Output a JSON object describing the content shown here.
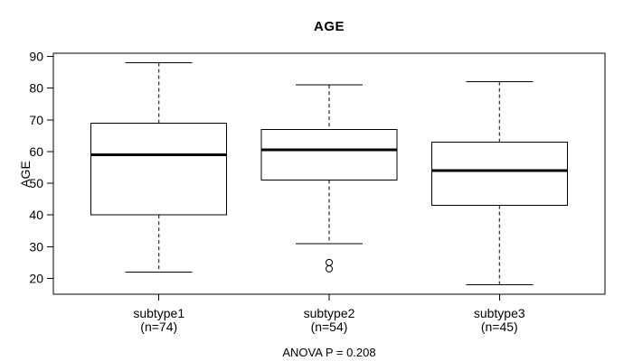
{
  "figure": {
    "background": "#ffffff",
    "foreground": "#000000"
  },
  "chart_data": {
    "type": "boxplot",
    "title": "AGE",
    "ylabel": "AGE",
    "xlabel": "",
    "annotation": "ANOVA P = 0.208",
    "ylim": [
      15,
      91
    ],
    "yticks": [
      20,
      30,
      40,
      50,
      60,
      70,
      80,
      90
    ],
    "grid": false,
    "legend": "none",
    "groups": [
      {
        "label": "subtype1",
        "sublabel": "(n=74)",
        "n": 74,
        "whisker_low": 22,
        "q1": 40,
        "median": 59,
        "q3": 69,
        "whisker_high": 88,
        "outliers": []
      },
      {
        "label": "subtype2",
        "sublabel": "(n=54)",
        "n": 54,
        "whisker_low": 31,
        "q1": 51,
        "median": 60.5,
        "q3": 67,
        "whisker_high": 81,
        "outliers": [
          25,
          23
        ]
      },
      {
        "label": "subtype3",
        "sublabel": "(n=45)",
        "n": 45,
        "whisker_low": 18,
        "q1": 43,
        "median": 54,
        "q3": 63,
        "whisker_high": 82,
        "outliers": []
      }
    ]
  }
}
